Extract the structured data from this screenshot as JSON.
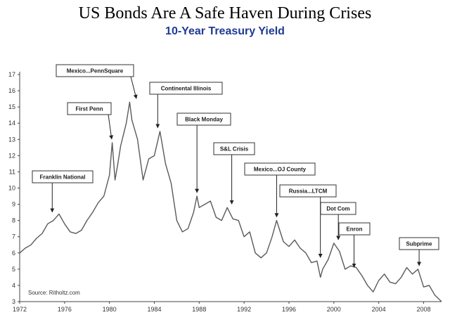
{
  "chart_data": {
    "type": "line",
    "title": "US Bonds Are A Safe Haven During Crises",
    "subtitle": "10-Year Treasury Yield",
    "xlim": [
      1972,
      2009.6
    ],
    "ylim": [
      3,
      17
    ],
    "x_ticks": [
      1972,
      1976,
      1980,
      1984,
      1988,
      1992,
      1996,
      2000,
      2004,
      2008
    ],
    "y_ticks": [
      3,
      4,
      5,
      6,
      7,
      8,
      9,
      10,
      11,
      12,
      13,
      14,
      15,
      16,
      17
    ],
    "grid": false,
    "line_color": "#5a5a5a",
    "source": "Source: Ritholtz.com",
    "series": [
      {
        "x": [
          1972.0,
          1972.5,
          1973.0,
          1973.5,
          1974.0,
          1974.5,
          1975.0,
          1975.5,
          1976.0,
          1976.5,
          1977.0,
          1977.5,
          1978.0,
          1978.5,
          1979.0,
          1979.5,
          1980.0,
          1980.25,
          1980.5,
          1980.75,
          1981.0,
          1981.5,
          1981.8,
          1982.0,
          1982.5,
          1983.0,
          1983.5,
          1984.0,
          1984.5,
          1985.0,
          1985.5,
          1986.0,
          1986.5,
          1987.0,
          1987.5,
          1987.8,
          1988.0,
          1988.5,
          1989.0,
          1989.5,
          1990.0,
          1990.5,
          1991.0,
          1991.5,
          1992.0,
          1992.5,
          1993.0,
          1993.5,
          1994.0,
          1994.5,
          1994.9,
          1995.5,
          1996.0,
          1996.5,
          1997.0,
          1997.5,
          1998.0,
          1998.5,
          1998.8,
          1999.0,
          1999.5,
          2000.0,
          2000.5,
          2001.0,
          2001.5,
          2002.0,
          2002.5,
          2003.0,
          2003.5,
          2004.0,
          2004.5,
          2005.0,
          2005.5,
          2006.0,
          2006.5,
          2007.0,
          2007.5,
          2008.0,
          2008.5,
          2009.0,
          2009.6
        ],
        "y": [
          6.0,
          6.3,
          6.5,
          6.9,
          7.2,
          7.8,
          8.0,
          8.4,
          7.8,
          7.3,
          7.2,
          7.4,
          8.0,
          8.5,
          9.1,
          9.5,
          10.8,
          12.8,
          10.5,
          11.5,
          12.6,
          14.0,
          15.3,
          14.2,
          13.0,
          10.5,
          11.8,
          12.0,
          13.5,
          11.5,
          10.3,
          8.0,
          7.3,
          7.5,
          8.5,
          9.5,
          8.8,
          9.0,
          9.2,
          8.2,
          8.0,
          8.8,
          8.1,
          8.0,
          7.0,
          7.3,
          6.0,
          5.7,
          6.0,
          7.0,
          8.0,
          6.7,
          6.4,
          6.8,
          6.3,
          6.0,
          5.4,
          5.5,
          4.5,
          5.0,
          5.6,
          6.6,
          6.1,
          5.0,
          5.2,
          5.1,
          4.6,
          4.0,
          3.6,
          4.3,
          4.7,
          4.2,
          4.1,
          4.5,
          5.1,
          4.7,
          5.0,
          3.9,
          4.0,
          3.4,
          3.0
        ]
      }
    ],
    "annotations": [
      {
        "label": "Franklin National",
        "x": 1974.9,
        "y": 8.3
      },
      {
        "label": "First Penn",
        "x": 1980.2,
        "y": 12.8
      },
      {
        "label": "Mexico...PennSquare",
        "x": 1982.4,
        "y": 15.3
      },
      {
        "label": "Continental Illinois",
        "x": 1984.3,
        "y": 13.5
      },
      {
        "label": "Black Monday",
        "x": 1987.8,
        "y": 9.5
      },
      {
        "label": "S&L Crisis",
        "x": 1990.9,
        "y": 8.8
      },
      {
        "label": "Mexico...OJ County",
        "x": 1994.9,
        "y": 8.0
      },
      {
        "label": "Russia...LTCM",
        "x": 1998.8,
        "y": 5.5
      },
      {
        "label": "Dot Com",
        "x": 2000.4,
        "y": 6.6
      },
      {
        "label": "Enron",
        "x": 2001.8,
        "y": 4.9
      },
      {
        "label": "Subprime",
        "x": 2007.6,
        "y": 5.0
      }
    ]
  }
}
